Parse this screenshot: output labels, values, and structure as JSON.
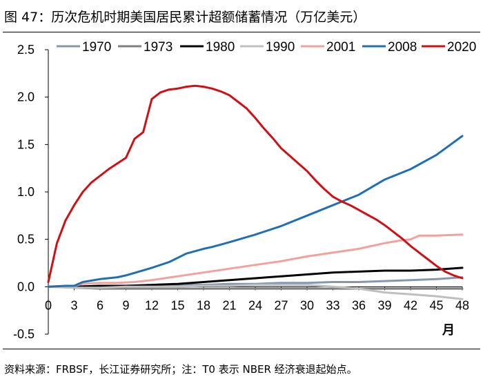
{
  "figure": {
    "title": "图 47：历次危机时期美国居民累计超额储蓄情况（万亿美元）",
    "source": "资料来源：FRBSF，长江证券研究所；注：T0 表示 NBER 经济衰退起始点。"
  },
  "chart_data": {
    "type": "line",
    "title": "历次危机时期美国居民累计超额储蓄情况（万亿美元）",
    "xlabel": "月",
    "ylabel": "",
    "xlim": [
      0,
      48
    ],
    "ylim": [
      -0.5,
      2.5
    ],
    "xticks": [
      0,
      3,
      6,
      9,
      12,
      15,
      18,
      21,
      24,
      27,
      30,
      33,
      36,
      39,
      42,
      45,
      48
    ],
    "yticks": [
      -0.5,
      0.0,
      0.5,
      1.0,
      1.5,
      2.0,
      2.5
    ],
    "ytick_labels": [
      "-0.5",
      "0.0",
      "0.5",
      "1.0",
      "1.5",
      "2.0",
      "2.5"
    ],
    "legend_position": "top",
    "series": [
      {
        "name": "1970",
        "color": "#8497b0",
        "points": [
          [
            0,
            0
          ],
          [
            3,
            0
          ],
          [
            6,
            0.01
          ],
          [
            9,
            0.01
          ],
          [
            12,
            0.01
          ],
          [
            15,
            0.02
          ],
          [
            18,
            0.02
          ],
          [
            21,
            0.03
          ],
          [
            24,
            0.03
          ],
          [
            27,
            0.04
          ],
          [
            30,
            0.04
          ],
          [
            33,
            0.05
          ],
          [
            36,
            0.05
          ],
          [
            39,
            0.06
          ],
          [
            42,
            0.07
          ],
          [
            45,
            0.08
          ],
          [
            48,
            0.1
          ]
        ]
      },
      {
        "name": "1973",
        "color": "#7f7f7f",
        "points": [
          [
            0,
            0
          ],
          [
            3,
            -0.01
          ],
          [
            6,
            -0.02
          ],
          [
            9,
            -0.02
          ],
          [
            12,
            -0.02
          ],
          [
            15,
            -0.02
          ],
          [
            18,
            -0.02
          ],
          [
            21,
            -0.02
          ],
          [
            24,
            -0.02
          ],
          [
            27,
            -0.02
          ],
          [
            30,
            -0.02
          ],
          [
            33,
            -0.02
          ],
          [
            36,
            -0.02
          ],
          [
            39,
            -0.02
          ],
          [
            42,
            -0.02
          ],
          [
            45,
            -0.02
          ],
          [
            48,
            -0.02
          ]
        ]
      },
      {
        "name": "1980",
        "color": "#000000",
        "points": [
          [
            0,
            0
          ],
          [
            3,
            0
          ],
          [
            6,
            0.01
          ],
          [
            9,
            0.01
          ],
          [
            12,
            0.02
          ],
          [
            15,
            0.03
          ],
          [
            18,
            0.05
          ],
          [
            21,
            0.07
          ],
          [
            24,
            0.09
          ],
          [
            27,
            0.11
          ],
          [
            30,
            0.13
          ],
          [
            33,
            0.15
          ],
          [
            36,
            0.16
          ],
          [
            39,
            0.17
          ],
          [
            42,
            0.17
          ],
          [
            45,
            0.18
          ],
          [
            48,
            0.2
          ]
        ]
      },
      {
        "name": "1990",
        "color": "#bfbfbf",
        "points": [
          [
            0,
            0
          ],
          [
            3,
            -0.01
          ],
          [
            6,
            -0.01
          ],
          [
            9,
            0
          ],
          [
            12,
            0
          ],
          [
            15,
            0
          ],
          [
            18,
            0.01
          ],
          [
            21,
            0.01
          ],
          [
            24,
            0.02
          ],
          [
            27,
            0.02
          ],
          [
            30,
            0.02
          ],
          [
            33,
            0
          ],
          [
            36,
            -0.02
          ],
          [
            39,
            -0.06
          ],
          [
            42,
            -0.08
          ],
          [
            45,
            -0.1
          ],
          [
            48,
            -0.13
          ]
        ]
      },
      {
        "name": "2001",
        "color": "#f4a09c",
        "points": [
          [
            0,
            0
          ],
          [
            3,
            0.01
          ],
          [
            4,
            0.03
          ],
          [
            6,
            0.04
          ],
          [
            8,
            0.04
          ],
          [
            10,
            0.05
          ],
          [
            12,
            0.07
          ],
          [
            15,
            0.11
          ],
          [
            18,
            0.15
          ],
          [
            21,
            0.19
          ],
          [
            24,
            0.23
          ],
          [
            27,
            0.27
          ],
          [
            30,
            0.32
          ],
          [
            33,
            0.36
          ],
          [
            36,
            0.4
          ],
          [
            39,
            0.46
          ],
          [
            41,
            0.49
          ],
          [
            42,
            0.5
          ],
          [
            43,
            0.54
          ],
          [
            45,
            0.54
          ],
          [
            48,
            0.55
          ]
        ]
      },
      {
        "name": "2008",
        "color": "#1f6fb5",
        "points": [
          [
            0,
            0
          ],
          [
            2,
            0.01
          ],
          [
            3,
            0.01
          ],
          [
            4,
            0.05
          ],
          [
            6,
            0.08
          ],
          [
            8,
            0.1
          ],
          [
            9,
            0.12
          ],
          [
            12,
            0.2
          ],
          [
            14,
            0.26
          ],
          [
            16,
            0.35
          ],
          [
            18,
            0.4
          ],
          [
            19,
            0.42
          ],
          [
            21,
            0.47
          ],
          [
            24,
            0.55
          ],
          [
            27,
            0.64
          ],
          [
            30,
            0.75
          ],
          [
            33,
            0.86
          ],
          [
            36,
            0.97
          ],
          [
            39,
            1.13
          ],
          [
            42,
            1.24
          ],
          [
            45,
            1.39
          ],
          [
            48,
            1.59
          ]
        ]
      },
      {
        "name": "2020",
        "color": "#d10f12",
        "points": [
          [
            0,
            0.05
          ],
          [
            1,
            0.46
          ],
          [
            2,
            0.7
          ],
          [
            3,
            0.86
          ],
          [
            4,
            1.0
          ],
          [
            5,
            1.1
          ],
          [
            6,
            1.17
          ],
          [
            7,
            1.24
          ],
          [
            8,
            1.3
          ],
          [
            9,
            1.36
          ],
          [
            10,
            1.56
          ],
          [
            11,
            1.63
          ],
          [
            12,
            1.98
          ],
          [
            13,
            2.05
          ],
          [
            14,
            2.08
          ],
          [
            15,
            2.09
          ],
          [
            16,
            2.11
          ],
          [
            17,
            2.12
          ],
          [
            18,
            2.11
          ],
          [
            19,
            2.09
          ],
          [
            20,
            2.06
          ],
          [
            21,
            2.02
          ],
          [
            22,
            1.95
          ],
          [
            23,
            1.88
          ],
          [
            24,
            1.78
          ],
          [
            25,
            1.67
          ],
          [
            26,
            1.57
          ],
          [
            27,
            1.46
          ],
          [
            28,
            1.38
          ],
          [
            29,
            1.3
          ],
          [
            30,
            1.22
          ],
          [
            31,
            1.12
          ],
          [
            32,
            1.03
          ],
          [
            33,
            0.95
          ],
          [
            34,
            0.9
          ],
          [
            35,
            0.86
          ],
          [
            36,
            0.81
          ],
          [
            37,
            0.76
          ],
          [
            38,
            0.71
          ],
          [
            39,
            0.65
          ],
          [
            40,
            0.58
          ],
          [
            41,
            0.51
          ],
          [
            42,
            0.43
          ],
          [
            43,
            0.36
          ],
          [
            44,
            0.29
          ],
          [
            45,
            0.22
          ],
          [
            46,
            0.16
          ],
          [
            47,
            0.12
          ],
          [
            48,
            0.09
          ]
        ]
      }
    ]
  }
}
